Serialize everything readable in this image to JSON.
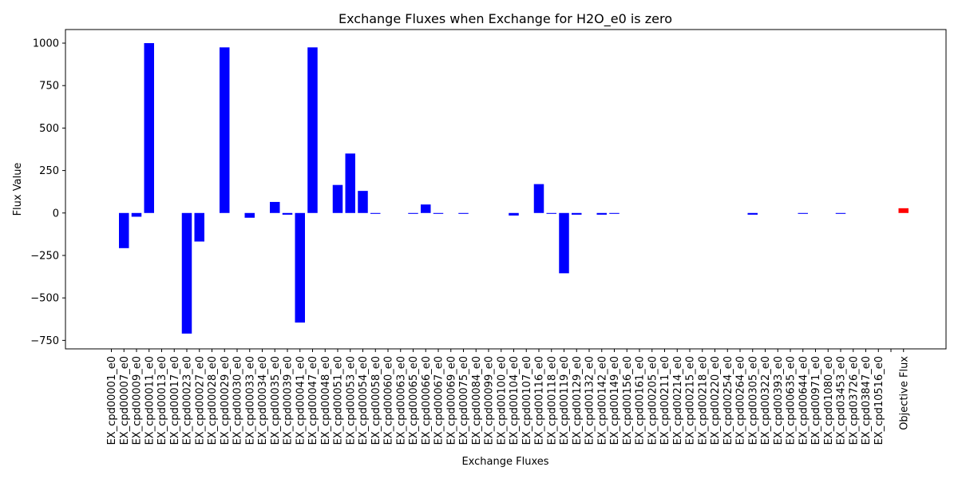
{
  "chart_data": {
    "type": "bar",
    "title": "Exchange Fluxes when Exchange for H2O_e0 is zero",
    "xlabel": "Exchange Fluxes",
    "ylabel": "Flux Value",
    "ylim": [
      -800,
      1080
    ],
    "yticks": [
      -750,
      -500,
      -250,
      0,
      250,
      500,
      750,
      1000
    ],
    "grid": false,
    "categories": [
      "EX_cpd00001_e0",
      "EX_cpd00007_e0",
      "EX_cpd00009_e0",
      "EX_cpd00011_e0",
      "EX_cpd00013_e0",
      "EX_cpd00017_e0",
      "EX_cpd00023_e0",
      "EX_cpd00027_e0",
      "EX_cpd00028_e0",
      "EX_cpd00029_e0",
      "EX_cpd00030_e0",
      "EX_cpd00033_e0",
      "EX_cpd00034_e0",
      "EX_cpd00035_e0",
      "EX_cpd00039_e0",
      "EX_cpd00041_e0",
      "EX_cpd00047_e0",
      "EX_cpd00048_e0",
      "EX_cpd00051_e0",
      "EX_cpd00053_e0",
      "EX_cpd00054_e0",
      "EX_cpd00058_e0",
      "EX_cpd00060_e0",
      "EX_cpd00063_e0",
      "EX_cpd00065_e0",
      "EX_cpd00066_e0",
      "EX_cpd00067_e0",
      "EX_cpd00069_e0",
      "EX_cpd00075_e0",
      "EX_cpd00084_e0",
      "EX_cpd00099_e0",
      "EX_cpd00100_e0",
      "EX_cpd00104_e0",
      "EX_cpd00107_e0",
      "EX_cpd00116_e0",
      "EX_cpd00118_e0",
      "EX_cpd00119_e0",
      "EX_cpd00129_e0",
      "EX_cpd00132_e0",
      "EX_cpd00142_e0",
      "EX_cpd00149_e0",
      "EX_cpd00156_e0",
      "EX_cpd00161_e0",
      "EX_cpd00205_e0",
      "EX_cpd00211_e0",
      "EX_cpd00214_e0",
      "EX_cpd00215_e0",
      "EX_cpd00218_e0",
      "EX_cpd00220_e0",
      "EX_cpd00254_e0",
      "EX_cpd00264_e0",
      "EX_cpd00305_e0",
      "EX_cpd00322_e0",
      "EX_cpd00393_e0",
      "EX_cpd00635_e0",
      "EX_cpd00644_e0",
      "EX_cpd00971_e0",
      "EX_cpd01080_e0",
      "EX_cpd03453_e0",
      "EX_cpd03726_e0",
      "EX_cpd03847_e0",
      "EX_cpd10516_e0",
      "",
      "Objective Flux"
    ],
    "values": [
      0,
      -207,
      -22,
      1000,
      0,
      0,
      -710,
      -168,
      0,
      975,
      0,
      -28,
      0,
      65,
      -10,
      -645,
      975,
      0,
      165,
      350,
      130,
      -5,
      0,
      0,
      -5,
      50,
      -5,
      0,
      -5,
      0,
      0,
      0,
      -15,
      0,
      170,
      -5,
      -355,
      -10,
      0,
      -10,
      -5,
      0,
      0,
      0,
      0,
      0,
      0,
      0,
      0,
      0,
      0,
      -10,
      0,
      0,
      0,
      -5,
      0,
      0,
      -5,
      0,
      0,
      0,
      0,
      28
    ],
    "colors": {
      "exchange": "#0000ff",
      "objective": "#ff0000"
    }
  }
}
